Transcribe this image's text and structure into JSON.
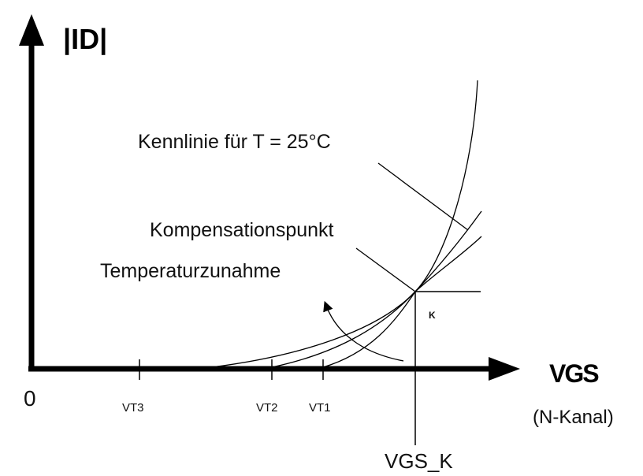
{
  "axes": {
    "y_label": "|ID|",
    "x_label": "VGS",
    "x_sublabel": "(N-Kanal)",
    "origin_label": "0"
  },
  "ticks": {
    "vt3": "VT3",
    "vt2": "VT2",
    "vt1": "VT1",
    "vgs_k": "VGS_K"
  },
  "annotations": {
    "kennlinie": "Kennlinie für T = 25°C",
    "kompensationspunkt": "Kompensationspunkt",
    "temperaturzunahme": "Temperaturzunahme",
    "point_k": "K"
  },
  "colors": {
    "axis": "#000000",
    "curve": "#000000"
  }
}
